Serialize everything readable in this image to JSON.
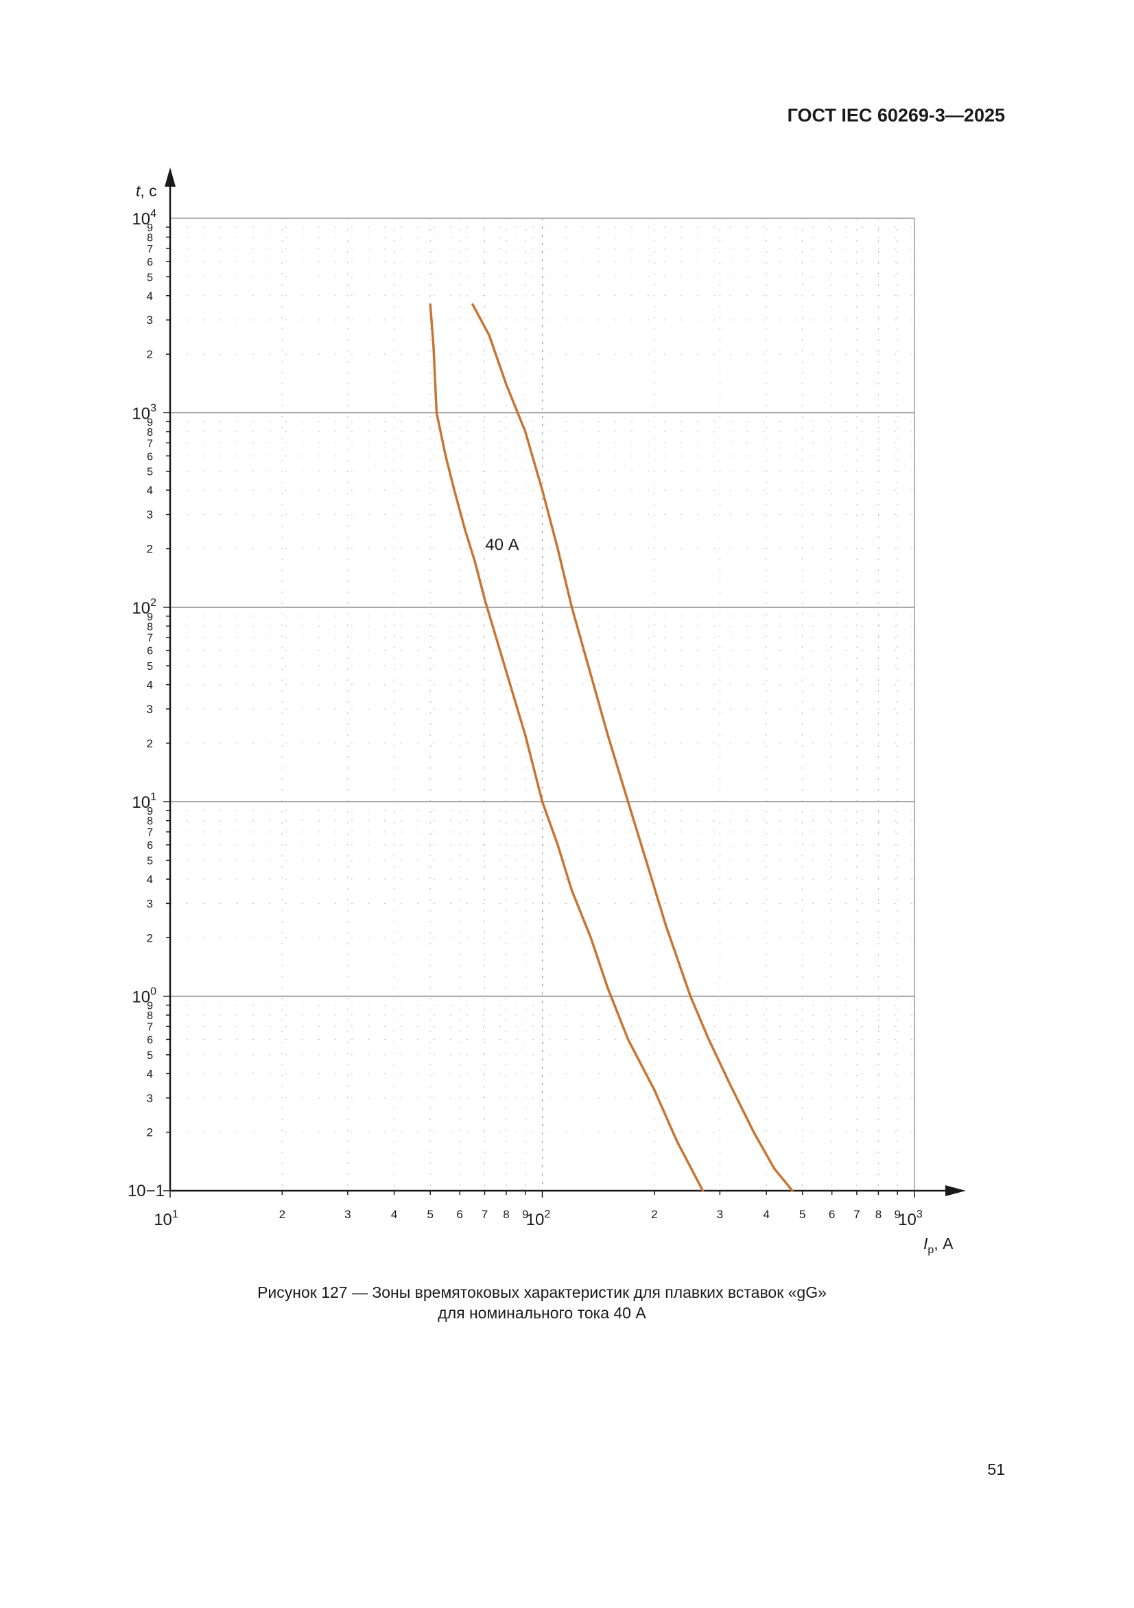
{
  "header": {
    "doc_id": "ГОСТ IEC 60269-3—2025"
  },
  "caption": {
    "line1": "Рисунок 127 — Зоны времятоковых характеристик для плавких вставок «gG»",
    "line2": "для номинального тока 40 А"
  },
  "page_number": "51",
  "chart_data": {
    "type": "line",
    "x_scale": "log",
    "y_scale": "log",
    "xlim": [
      10,
      1000
    ],
    "ylim": [
      0.1,
      10000
    ],
    "xlabel": {
      "var": "I",
      "sub": "p",
      "unit": ", А"
    },
    "ylabel": {
      "var": "t",
      "unit": ", с"
    },
    "x_decades": [
      {
        "value": 10,
        "base": "10",
        "exp": "1"
      },
      {
        "value": 100,
        "base": "10",
        "exp": "2"
      },
      {
        "value": 1000,
        "base": "10",
        "exp": "3"
      }
    ],
    "y_decades": [
      {
        "value": 0.1,
        "base": "10",
        "exp": "−1",
        "flat": true
      },
      {
        "value": 1,
        "base": "10",
        "exp": "0"
      },
      {
        "value": 10,
        "base": "10",
        "exp": "1"
      },
      {
        "value": 100,
        "base": "10",
        "exp": "2"
      },
      {
        "value": 1000,
        "base": "10",
        "exp": "3"
      },
      {
        "value": 10000,
        "base": "10",
        "exp": "4"
      }
    ],
    "minor_tick_labels": [
      "2",
      "3",
      "4",
      "5",
      "6",
      "7",
      "8",
      "9"
    ],
    "annotation": {
      "text": "40 А",
      "x": 78,
      "y": 210
    },
    "series": [
      {
        "color": "#c87533",
        "x": [
          50,
          51,
          52,
          55,
          58,
          62,
          66,
          70,
          76,
          82,
          90,
          100,
          110,
          120,
          135,
          150,
          170,
          200,
          230,
          270
        ],
        "y": [
          3600,
          2200,
          1000,
          600,
          400,
          250,
          170,
          110,
          65,
          40,
          22,
          10,
          6,
          3.5,
          2,
          1.1,
          0.6,
          0.33,
          0.18,
          0.1
        ]
      },
      {
        "color": "#c87533",
        "x": [
          65,
          72,
          80,
          90,
          100,
          110,
          120,
          135,
          150,
          170,
          190,
          215,
          250,
          280,
          320,
          370,
          420,
          470
        ],
        "y": [
          3600,
          2500,
          1400,
          800,
          400,
          200,
          100,
          45,
          22,
          10,
          5,
          2.3,
          1,
          0.6,
          0.35,
          0.2,
          0.13,
          0.1
        ]
      }
    ]
  }
}
